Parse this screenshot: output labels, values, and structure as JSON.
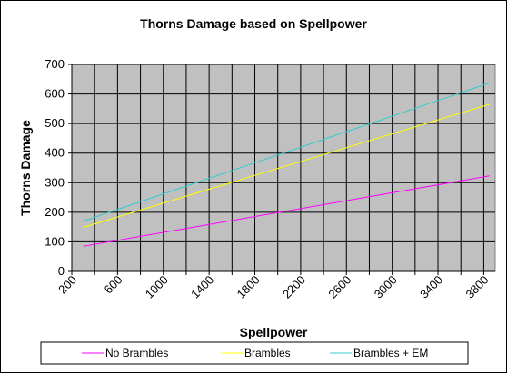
{
  "chart_data": {
    "type": "line",
    "title": "Thorns Damage based on Spellpower",
    "xlabel": "Spellpower",
    "ylabel": "Thorns Damage",
    "xlim": [
      200,
      3900
    ],
    "ylim": [
      0,
      700
    ],
    "y_ticks": [
      0,
      100,
      200,
      300,
      400,
      500,
      600,
      700
    ],
    "x_ticks": [
      200,
      600,
      1000,
      1400,
      1800,
      2200,
      2600,
      3000,
      3400,
      3800
    ],
    "grid": true,
    "legend_position": "bottom",
    "plot_background": "#c0c0c0",
    "series": [
      {
        "name": "No Brambles",
        "color": "#ff00ff",
        "x": [
          300,
          3850
        ],
        "y": [
          85,
          323
        ]
      },
      {
        "name": "Brambles",
        "color": "#ffff00",
        "x": [
          300,
          3850
        ],
        "y": [
          149,
          565
        ]
      },
      {
        "name": "Brambles + EM",
        "color": "#33cccc",
        "x": [
          300,
          3850
        ],
        "y": [
          170,
          637
        ]
      }
    ]
  }
}
